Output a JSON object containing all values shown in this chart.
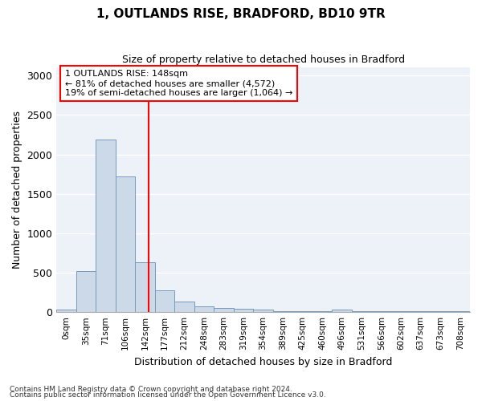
{
  "title": "1, OUTLANDS RISE, BRADFORD, BD10 9TR",
  "subtitle": "Size of property relative to detached houses in Bradford",
  "xlabel": "Distribution of detached houses by size in Bradford",
  "ylabel": "Number of detached properties",
  "footnote1": "Contains HM Land Registry data © Crown copyright and database right 2024.",
  "footnote2": "Contains public sector information licensed under the Open Government Licence v3.0.",
  "bar_color": "#ccd9e8",
  "bar_edge_color": "#7799bb",
  "fig_background": "#ffffff",
  "ax_background": "#edf2f9",
  "grid_color": "#ffffff",
  "bin_labels": [
    "0sqm",
    "35sqm",
    "71sqm",
    "106sqm",
    "142sqm",
    "177sqm",
    "212sqm",
    "248sqm",
    "283sqm",
    "319sqm",
    "354sqm",
    "389sqm",
    "425sqm",
    "460sqm",
    "496sqm",
    "531sqm",
    "566sqm",
    "602sqm",
    "637sqm",
    "673sqm",
    "708sqm"
  ],
  "bar_values": [
    28,
    520,
    2190,
    1720,
    630,
    280,
    130,
    75,
    50,
    42,
    35,
    8,
    8,
    8,
    28,
    8,
    8,
    8,
    8,
    8,
    8
  ],
  "ylim": [
    0,
    3100
  ],
  "yticks": [
    0,
    500,
    1000,
    1500,
    2000,
    2500,
    3000
  ],
  "red_line_label": "1 OUTLANDS RISE: 148sqm",
  "annotation_line1": "← 81% of detached houses are smaller (4,572)",
  "annotation_line2": "19% of semi-detached houses are larger (1,064) →",
  "red_line_bin_index": 4.17
}
